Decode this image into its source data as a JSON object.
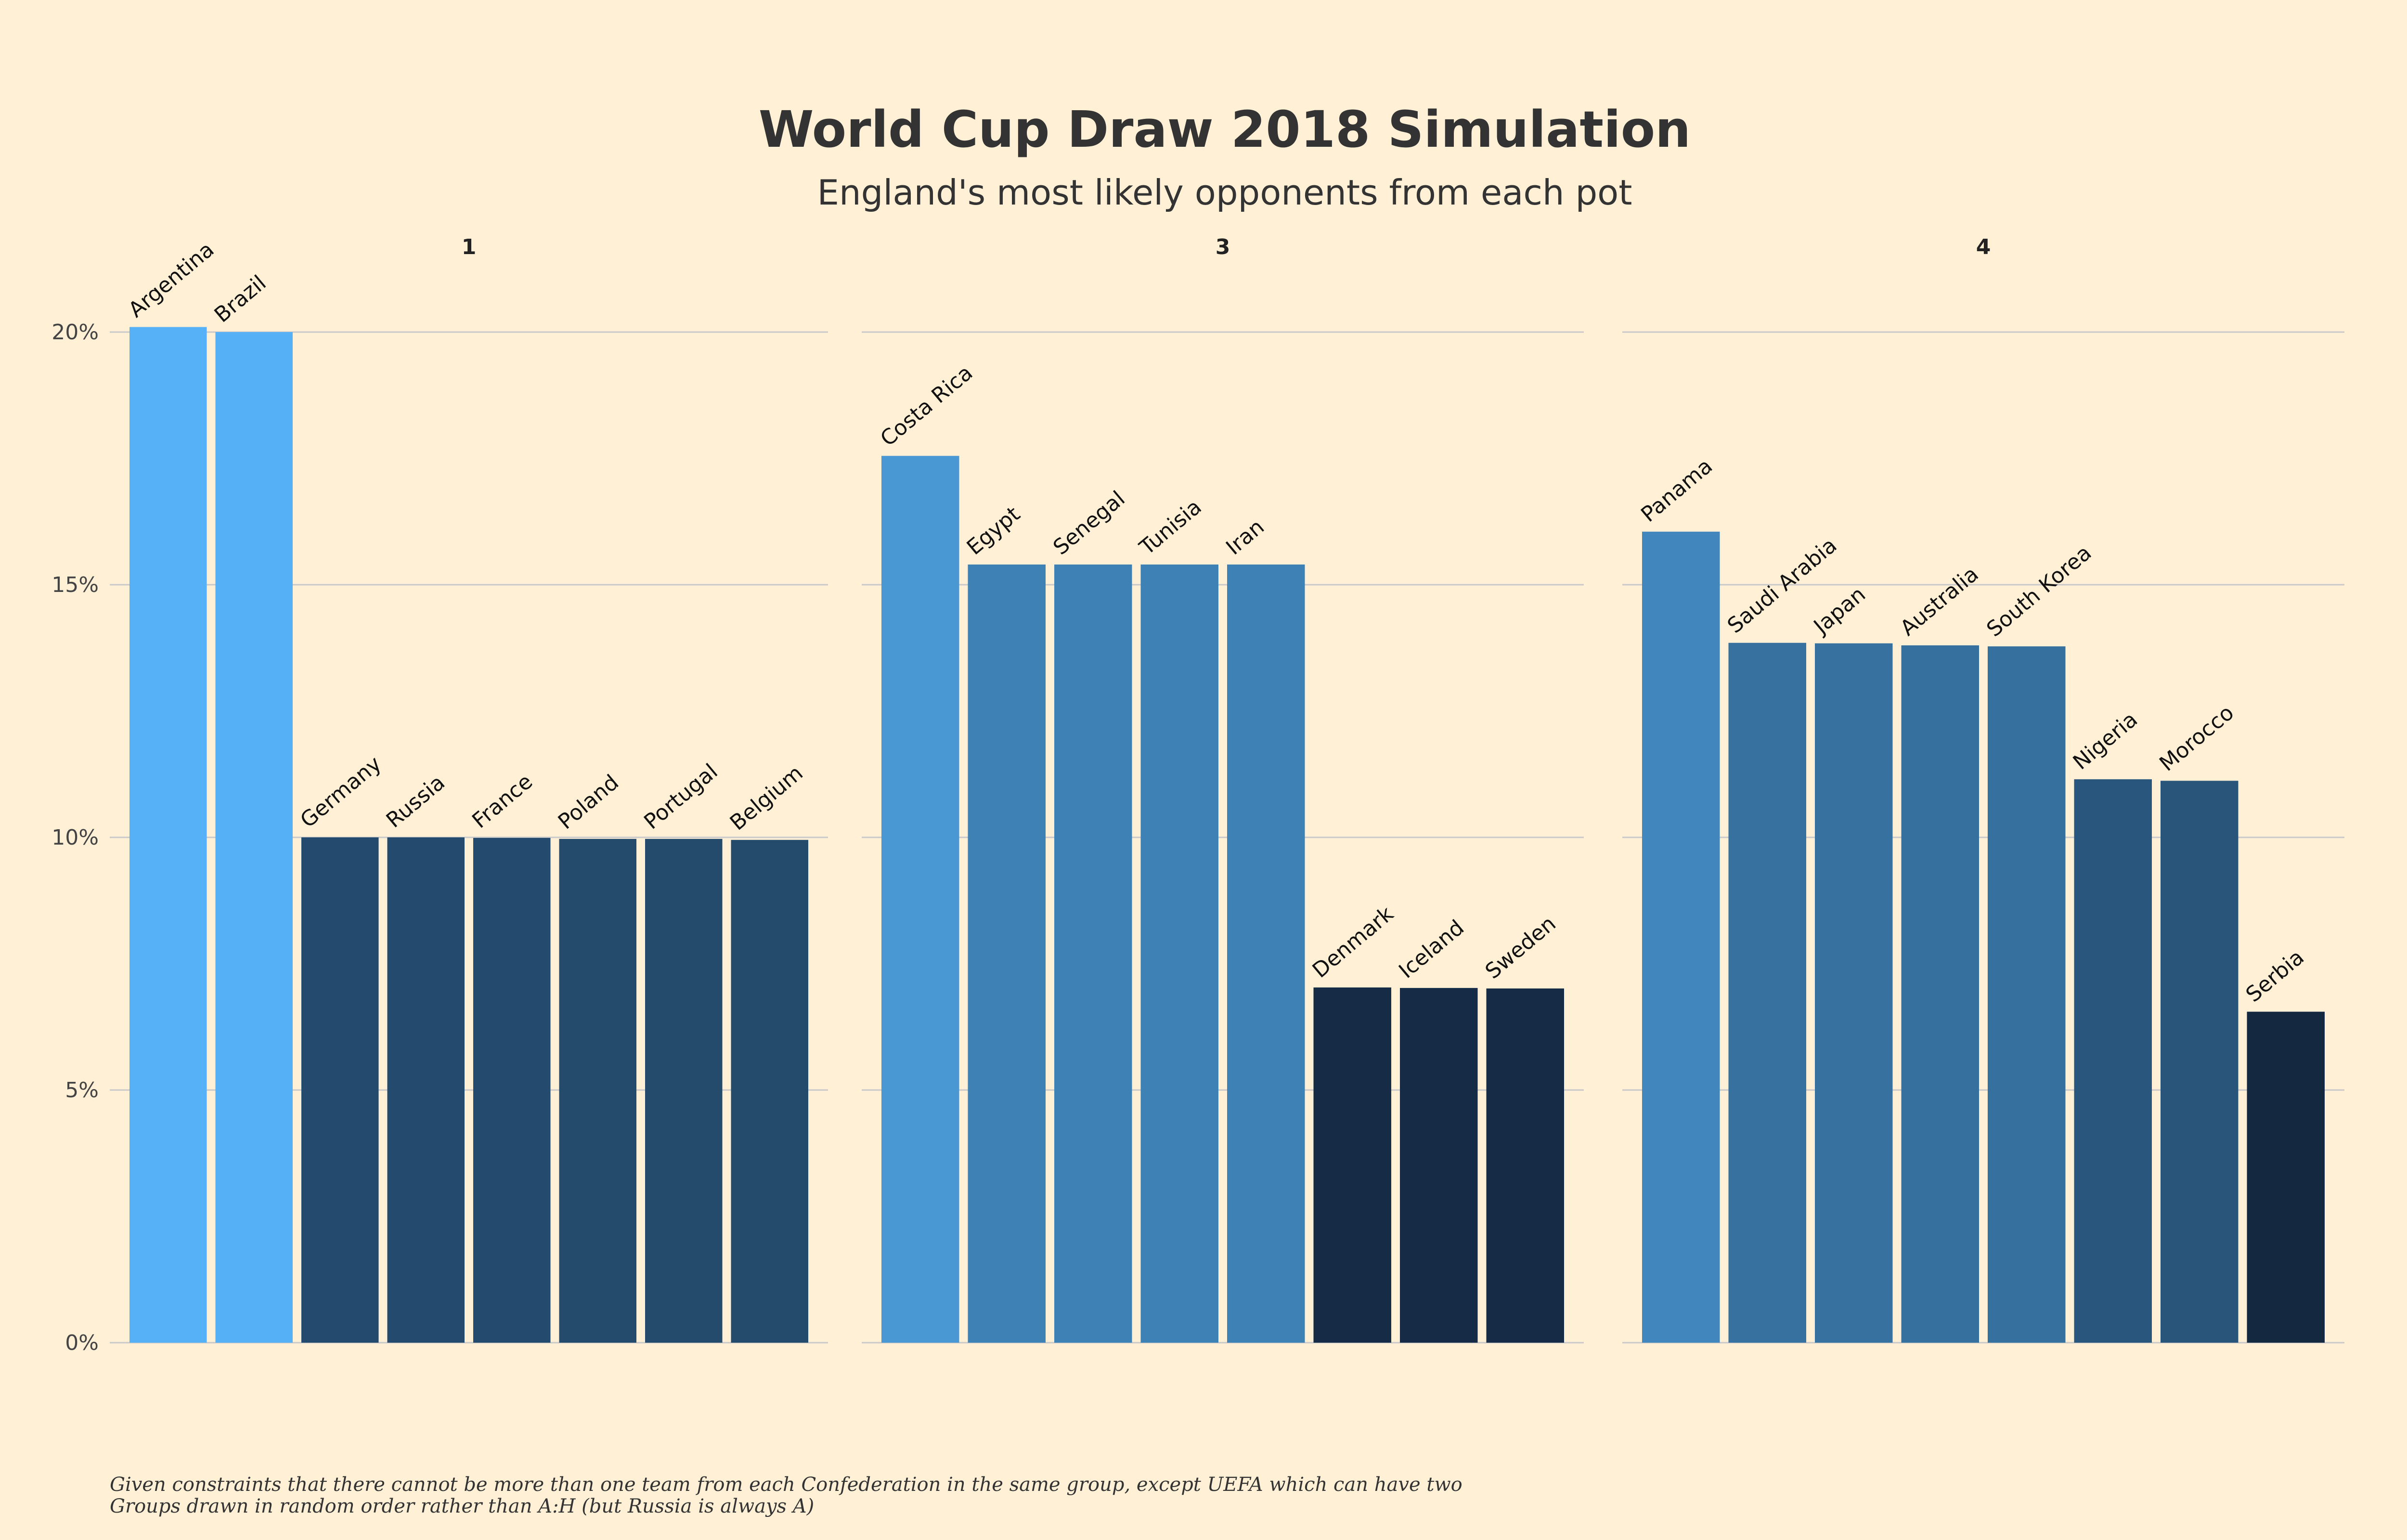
{
  "chart_data": {
    "type": "bar",
    "title": "World Cup Draw 2018 Simulation",
    "subtitle": "England's most likely opponents from each pot",
    "xlabel": "",
    "ylabel": "",
    "ylim": [
      0,
      20.5
    ],
    "y_ticks": [
      0,
      5,
      10,
      15,
      20
    ],
    "y_tick_labels": [
      "0%",
      "5%",
      "10%",
      "15%",
      "20%"
    ],
    "grid": true,
    "legend": "none",
    "color_scale": {
      "low": "#14273f",
      "mid": "#336b98",
      "high": "#56b1f7",
      "range": [
        6.5,
        20.1
      ]
    },
    "facets": [
      {
        "label": "1",
        "categories": [
          "Argentina",
          "Brazil",
          "Germany",
          "Russia",
          "France",
          "Poland",
          "Portugal",
          "Belgium"
        ],
        "values": [
          20.1,
          20.0,
          10.0,
          10.0,
          9.99,
          9.97,
          9.97,
          9.95
        ]
      },
      {
        "label": "3",
        "categories": [
          "Costa Rica",
          "Egypt",
          "Senegal",
          "Tunisia",
          "Iran",
          "Denmark",
          "Iceland",
          "Sweden"
        ],
        "values": [
          17.55,
          15.4,
          15.4,
          15.4,
          15.4,
          7.03,
          7.02,
          7.01
        ]
      },
      {
        "label": "4",
        "categories": [
          "Panama",
          "Saudi Arabia",
          "Japan",
          "Australia",
          "South Korea",
          "Nigeria",
          "Morocco",
          "Serbia"
        ],
        "values": [
          16.05,
          13.85,
          13.84,
          13.8,
          13.78,
          11.15,
          11.12,
          6.55
        ]
      }
    ],
    "caption": [
      "Given constraints that there cannot be more than one team from each Confederation in the same group, except UEFA which can have two",
      "Groups drawn in random order rather than A:H (but Russia is always A)"
    ]
  }
}
